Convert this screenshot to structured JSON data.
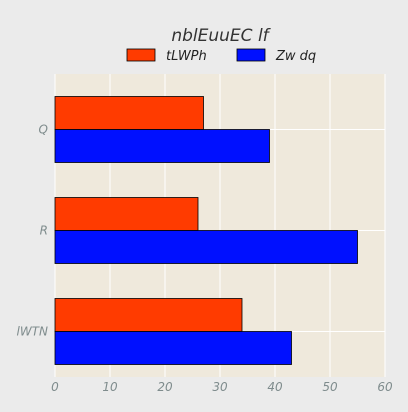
{
  "chart_data": {
    "type": "bar",
    "orientation": "horizontal",
    "title": "nblEuuEC lf",
    "xlabel": "",
    "ylabel": "",
    "categories": [
      "Q",
      "R",
      "lWTN"
    ],
    "series": [
      {
        "name": "tLWPh",
        "values": [
          27,
          26,
          34
        ],
        "color": "#ff3b00"
      },
      {
        "name": "Zw dq",
        "values": [
          39,
          55,
          43
        ],
        "color": "#0010ff"
      }
    ],
    "xlim": [
      0,
      60
    ],
    "xticks": [
      0,
      10,
      20,
      30,
      40,
      50,
      60
    ],
    "grid": true,
    "legend": "top-center",
    "colors": {
      "background": "#ebebeb",
      "plot_background": "#efe9dc",
      "grid": "#ffffff",
      "tick_text": "#7f8c8d",
      "title_text": "#333333"
    }
  }
}
